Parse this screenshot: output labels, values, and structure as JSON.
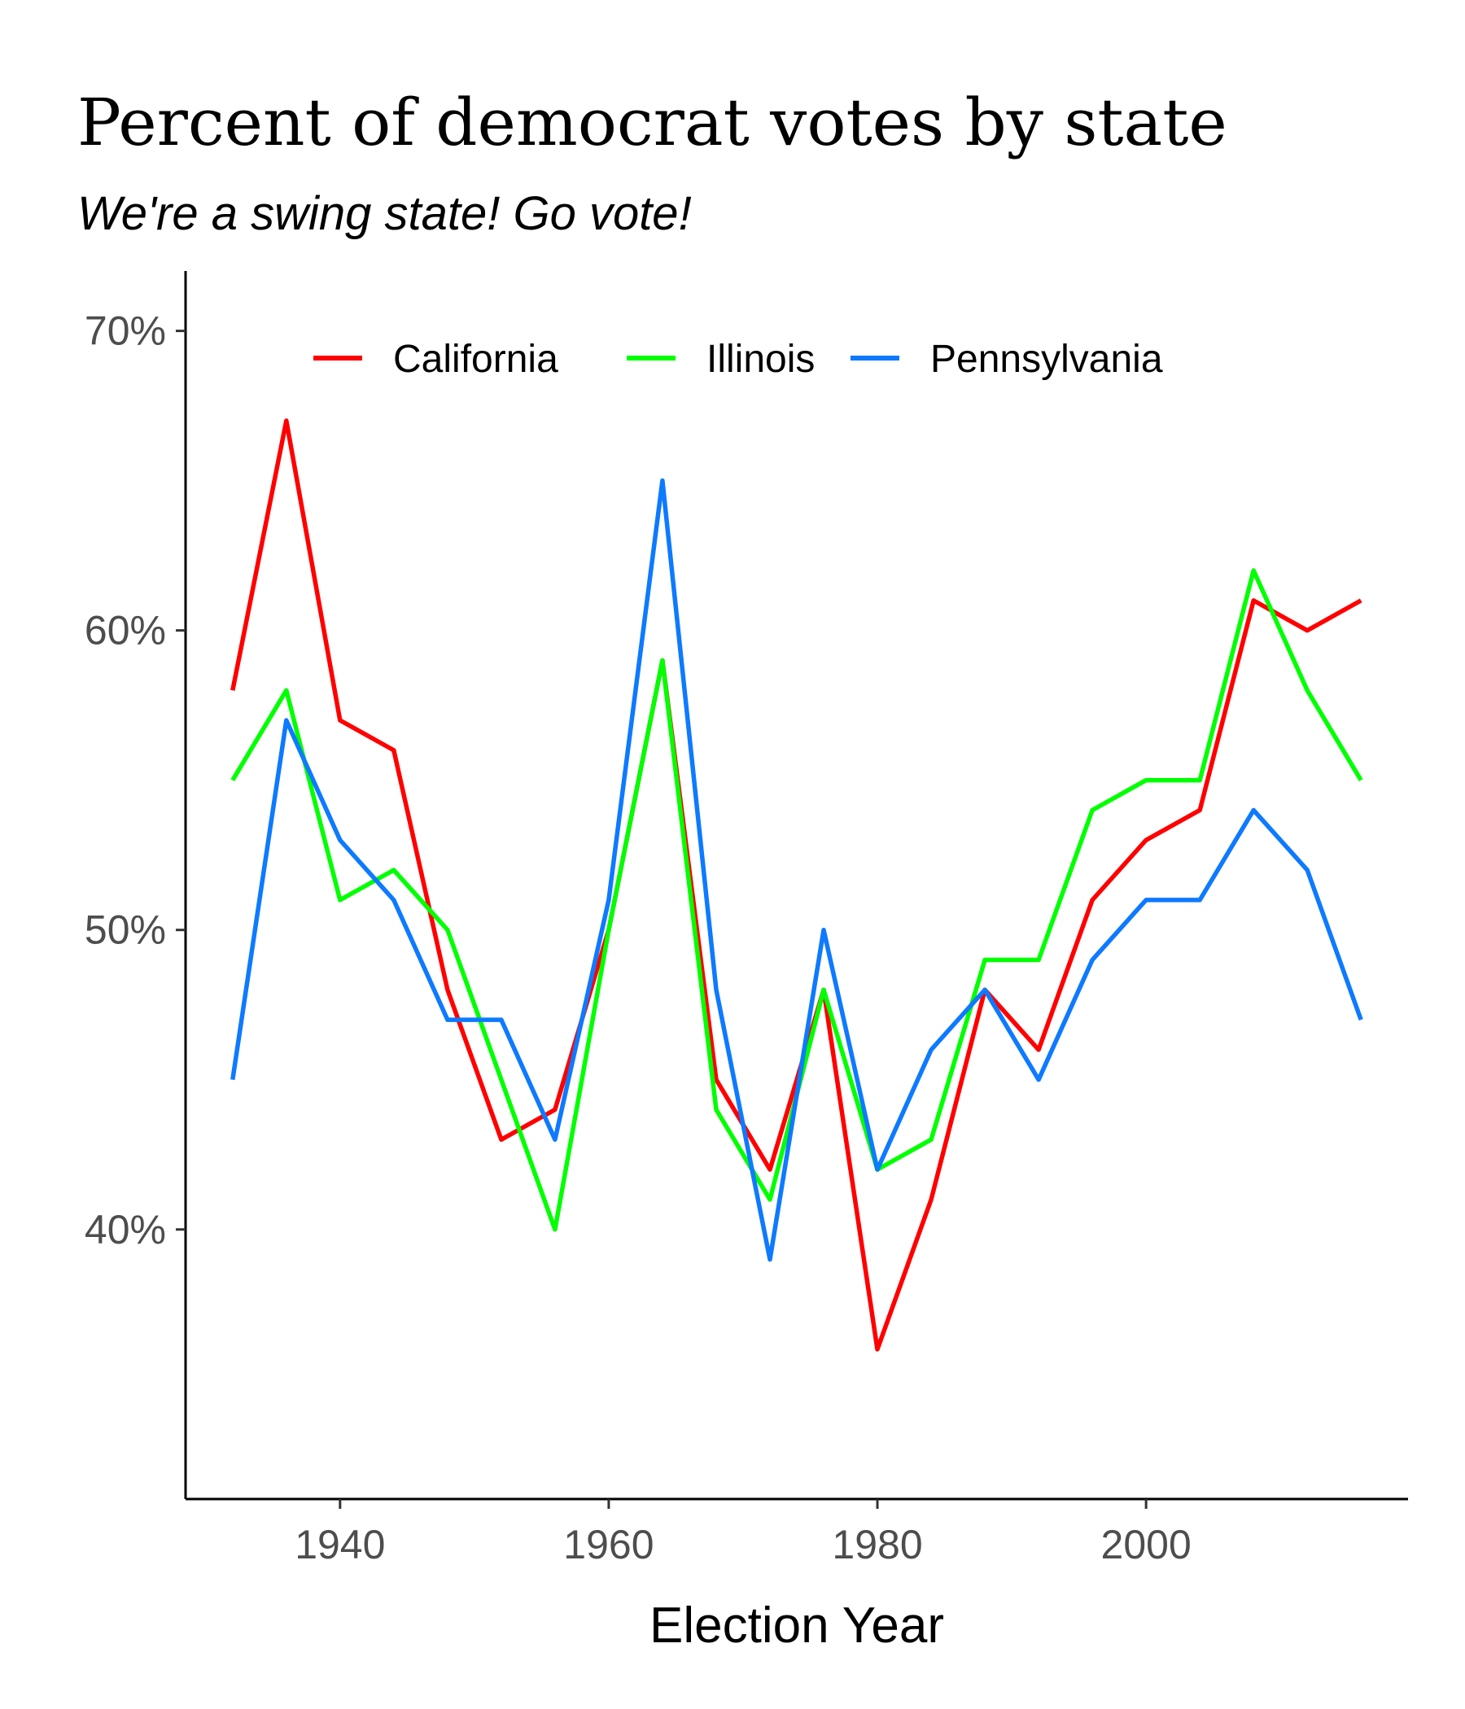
{
  "chart_data": {
    "type": "line",
    "title": "Percent of democrat votes by state",
    "subtitle": "We're a swing state! Go vote!",
    "xlabel": "Election Year",
    "ylabel": "",
    "xlim": [
      1928.5,
      2019.5
    ],
    "ylim": [
      31,
      72
    ],
    "x_ticks": [
      1940,
      1960,
      1980,
      2000
    ],
    "y_ticks": [
      40,
      50,
      60,
      70
    ],
    "y_tick_labels": [
      "40%",
      "50%",
      "60%",
      "70%"
    ],
    "legend_position": "top",
    "grid": false,
    "x": [
      1932,
      1936,
      1940,
      1944,
      1948,
      1952,
      1956,
      1960,
      1964,
      1968,
      1972,
      1976,
      1980,
      1984,
      1988,
      1992,
      1996,
      2000,
      2004,
      2008,
      2012,
      2016
    ],
    "series": [
      {
        "name": "California",
        "color": "#ff0000",
        "values": [
          58,
          67,
          57,
          56,
          48,
          43,
          44,
          50,
          59,
          45,
          42,
          48,
          36,
          41,
          48,
          46,
          51,
          53,
          54,
          61,
          60,
          61
        ]
      },
      {
        "name": "Illinois",
        "color": "#00ff00",
        "values": [
          55,
          58,
          51,
          52,
          50,
          45,
          40,
          50,
          59,
          44,
          41,
          48,
          42,
          43,
          49,
          49,
          54,
          55,
          55,
          62,
          58,
          55
        ]
      },
      {
        "name": "Pennsylvania",
        "color": "#0d7aff",
        "values": [
          45,
          57,
          53,
          51,
          47,
          47,
          43,
          51,
          65,
          48,
          39,
          50,
          42,
          46,
          48,
          45,
          49,
          51,
          51,
          54,
          52,
          47
        ]
      }
    ]
  }
}
